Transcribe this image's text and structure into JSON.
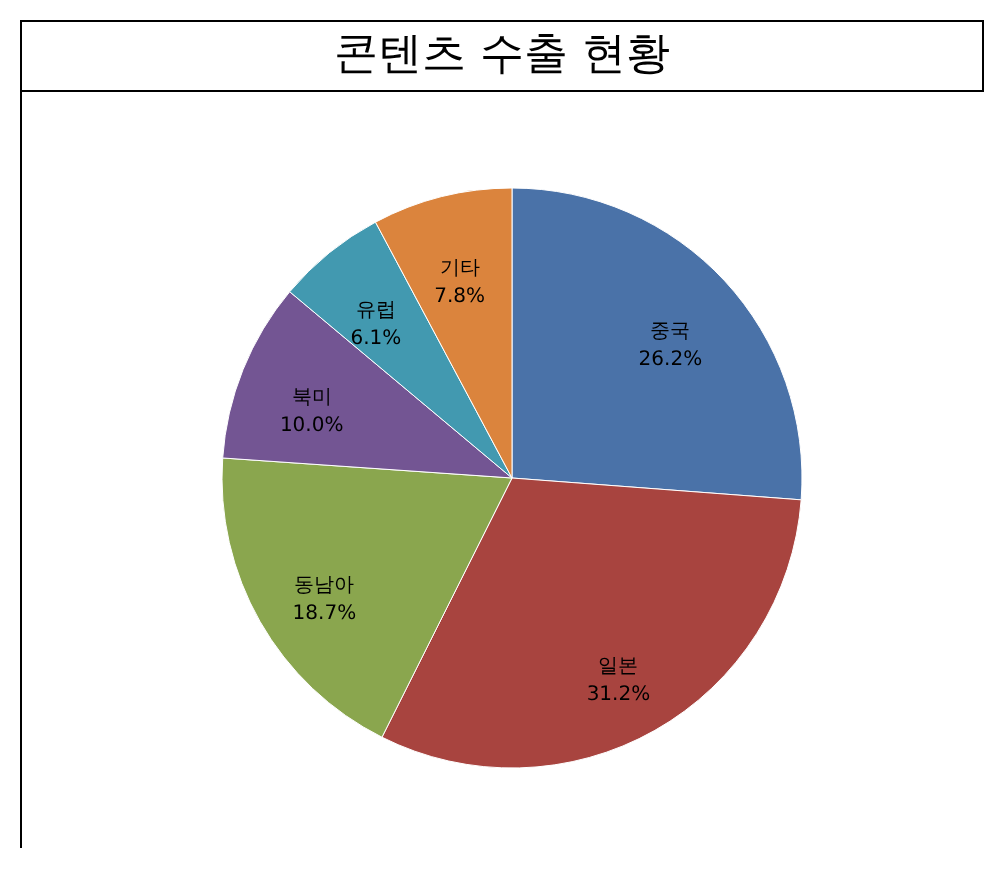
{
  "chart_data": {
    "type": "pie",
    "title": "콘텐츠 수출 현황",
    "categories": [
      "중국",
      "일본",
      "동남아",
      "북미",
      "유럽",
      "기타"
    ],
    "values": [
      26.2,
      31.2,
      18.7,
      10.0,
      6.1,
      7.8
    ],
    "value_labels": [
      "26.2%",
      "31.2%",
      "18.7%",
      "10.0%",
      "6.1%",
      "7.8%"
    ],
    "colors": [
      "#4a72a8",
      "#a8443f",
      "#8aa64e",
      "#735593",
      "#4299b0",
      "#db843d"
    ]
  }
}
